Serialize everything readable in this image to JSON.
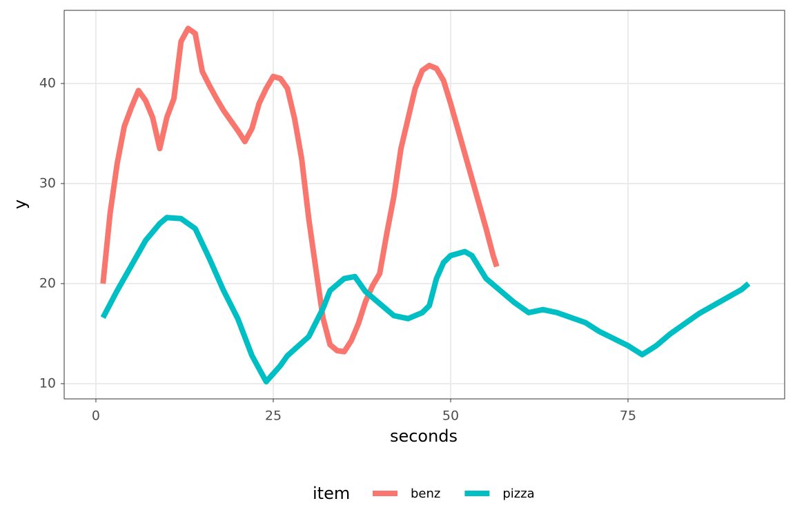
{
  "chart_data": {
    "type": "line",
    "x_label": "seconds",
    "y_label": "y",
    "legend_title": "item",
    "legend_position": "bottom",
    "grid": true,
    "xlim": [
      -4.47,
      97.08
    ],
    "ylim": [
      8.48,
      47.31
    ],
    "xticks": [
      0,
      25,
      50,
      75
    ],
    "yticks": [
      10,
      20,
      30,
      40
    ],
    "series": [
      {
        "name": "benz",
        "color": "#F8766D",
        "x": [
          1,
          2,
          3,
          4,
          5,
          6,
          7,
          8,
          9,
          10,
          11,
          12,
          13,
          14,
          15,
          16,
          17,
          18,
          19,
          20,
          21,
          22,
          23,
          24,
          25,
          26,
          27,
          28,
          29,
          30,
          31,
          32,
          33,
          34,
          35,
          36,
          37,
          38,
          39,
          40,
          41,
          42,
          43,
          44,
          45,
          46,
          47,
          48,
          49,
          50,
          51,
          52,
          53,
          54,
          55,
          56,
          56.5
        ],
        "values": [
          20,
          27,
          32,
          35.7,
          37.6,
          39.3,
          38.3,
          36.6,
          33.5,
          36.6,
          38.5,
          44.2,
          45.5,
          45,
          41.2,
          39.8,
          38.5,
          37.3,
          36.3,
          35.3,
          34.2,
          35.5,
          38,
          39.5,
          40.7,
          40.5,
          39.5,
          36.5,
          32.5,
          26.5,
          21.5,
          16.6,
          13.9,
          13.3,
          13.2,
          14.3,
          16,
          18.2,
          19.8,
          21,
          25,
          28.7,
          33.5,
          36.5,
          39.5,
          41.3,
          41.8,
          41.5,
          40.3,
          38,
          35.5,
          33,
          30.5,
          28,
          25.5,
          22.8,
          21.7
        ]
      },
      {
        "name": "pizza",
        "color": "#00BFC4",
        "x": [
          1,
          3,
          5,
          7,
          9,
          10,
          12,
          14,
          16,
          18,
          20,
          22,
          24,
          26,
          27,
          30,
          32,
          33,
          35,
          36.5,
          38,
          40,
          42,
          44,
          46,
          47,
          48,
          49,
          50,
          52,
          53,
          55,
          57,
          59,
          61,
          63,
          65,
          67,
          69,
          71,
          73,
          75,
          77,
          79,
          81,
          83,
          85,
          87,
          89,
          91,
          92
        ],
        "values": [
          16.6,
          19.3,
          21.8,
          24.3,
          26,
          26.6,
          26.5,
          25.5,
          22.5,
          19.3,
          16.5,
          12.8,
          10.2,
          11.8,
          12.8,
          14.7,
          17.5,
          19.3,
          20.5,
          20.7,
          19.2,
          18,
          16.8,
          16.5,
          17.1,
          17.8,
          20.5,
          22.1,
          22.8,
          23.2,
          22.8,
          20.5,
          19.3,
          18.1,
          17.1,
          17.4,
          17.1,
          16.6,
          16.1,
          15.2,
          14.5,
          13.8,
          12.9,
          13.8,
          15,
          16,
          17,
          17.8,
          18.6,
          19.4,
          20
        ]
      }
    ]
  }
}
